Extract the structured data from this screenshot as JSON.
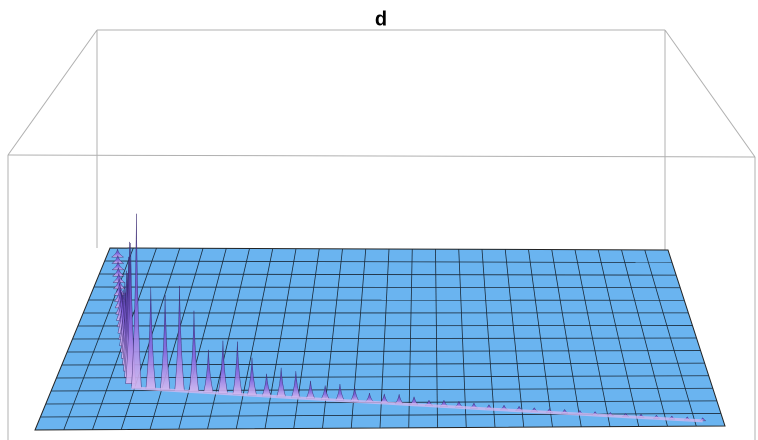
{
  "chart_data": {
    "type": "surface",
    "title": "d"
  }
}
